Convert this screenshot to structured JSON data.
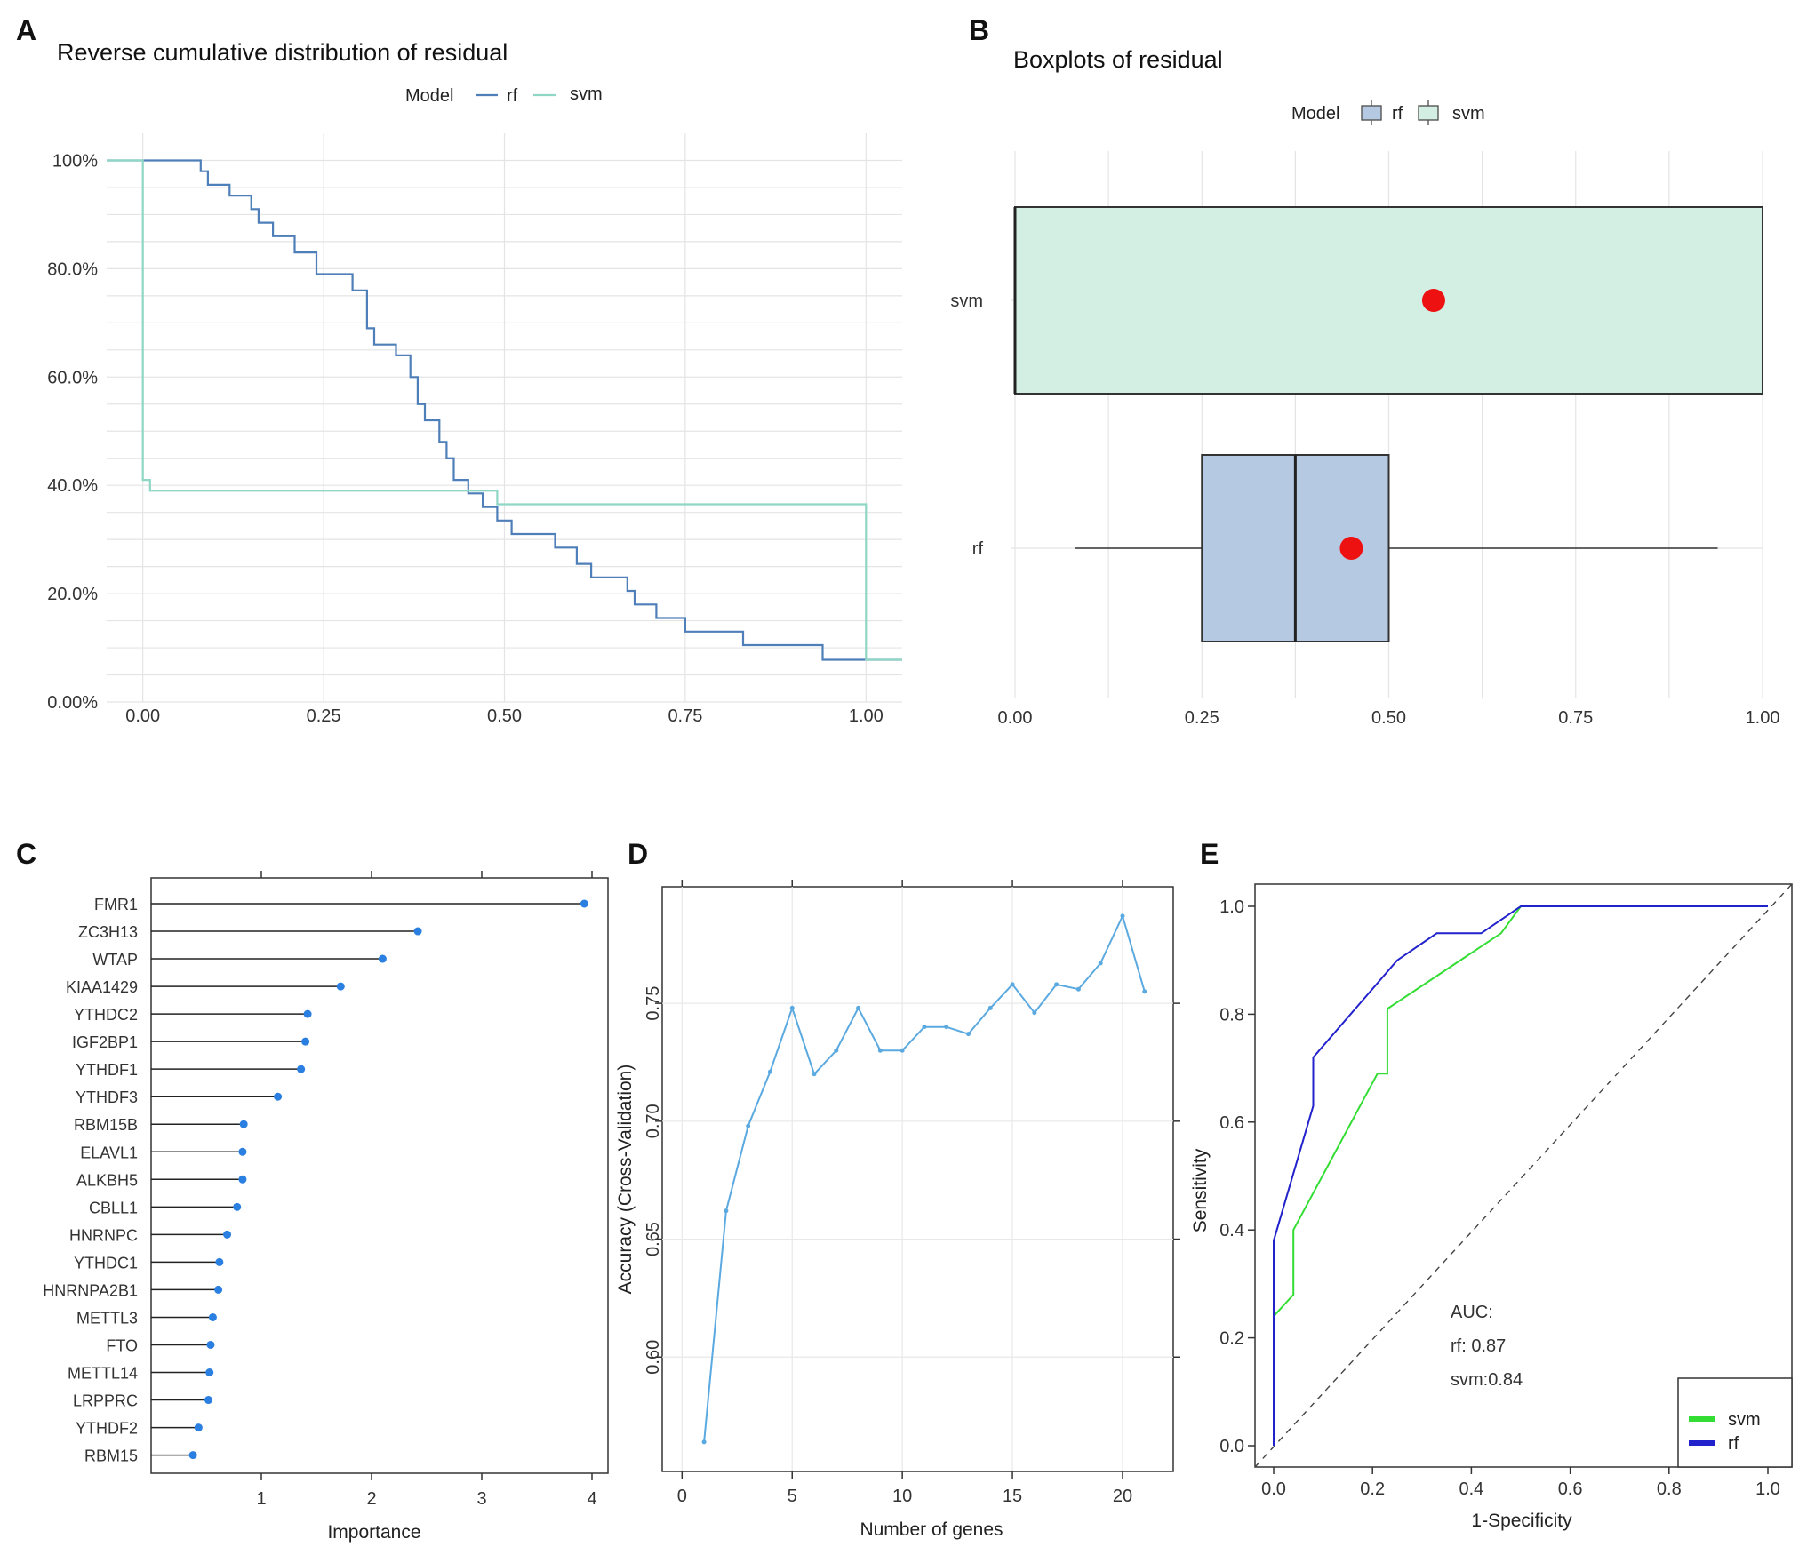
{
  "chart_data": [
    {
      "panel": "A",
      "type": "line",
      "title": "Reverse cumulative distribution of residual",
      "legend_title": "Model",
      "xlim": [
        -0.05,
        1.05
      ],
      "ylim": [
        0,
        1.05
      ],
      "x_ticks": [
        "0.00",
        "0.25",
        "0.50",
        "0.75",
        "1.00"
      ],
      "y_ticks": [
        "0.00%",
        "20.0%",
        "40.0%",
        "60.0%",
        "80.0%",
        "100%"
      ],
      "series": [
        {
          "name": "rf",
          "color": "#4f7fb8",
          "points": [
            [
              -0.05,
              1.0
            ],
            [
              0.08,
              1.0
            ],
            [
              0.08,
              0.98
            ],
            [
              0.09,
              0.98
            ],
            [
              0.09,
              0.955
            ],
            [
              0.12,
              0.955
            ],
            [
              0.12,
              0.935
            ],
            [
              0.15,
              0.935
            ],
            [
              0.15,
              0.91
            ],
            [
              0.16,
              0.91
            ],
            [
              0.16,
              0.885
            ],
            [
              0.18,
              0.885
            ],
            [
              0.18,
              0.86
            ],
            [
              0.21,
              0.86
            ],
            [
              0.21,
              0.83
            ],
            [
              0.24,
              0.83
            ],
            [
              0.24,
              0.79
            ],
            [
              0.29,
              0.79
            ],
            [
              0.29,
              0.76
            ],
            [
              0.31,
              0.76
            ],
            [
              0.31,
              0.69
            ],
            [
              0.32,
              0.69
            ],
            [
              0.32,
              0.66
            ],
            [
              0.35,
              0.66
            ],
            [
              0.35,
              0.64
            ],
            [
              0.37,
              0.64
            ],
            [
              0.37,
              0.6
            ],
            [
              0.38,
              0.6
            ],
            [
              0.38,
              0.55
            ],
            [
              0.39,
              0.55
            ],
            [
              0.39,
              0.52
            ],
            [
              0.41,
              0.52
            ],
            [
              0.41,
              0.48
            ],
            [
              0.42,
              0.48
            ],
            [
              0.42,
              0.45
            ],
            [
              0.43,
              0.45
            ],
            [
              0.43,
              0.41
            ],
            [
              0.45,
              0.41
            ],
            [
              0.45,
              0.385
            ],
            [
              0.47,
              0.385
            ],
            [
              0.47,
              0.36
            ],
            [
              0.49,
              0.36
            ],
            [
              0.49,
              0.335
            ],
            [
              0.51,
              0.335
            ],
            [
              0.51,
              0.31
            ],
            [
              0.57,
              0.31
            ],
            [
              0.57,
              0.285
            ],
            [
              0.6,
              0.285
            ],
            [
              0.6,
              0.255
            ],
            [
              0.62,
              0.255
            ],
            [
              0.62,
              0.23
            ],
            [
              0.67,
              0.23
            ],
            [
              0.67,
              0.205
            ],
            [
              0.68,
              0.205
            ],
            [
              0.68,
              0.18
            ],
            [
              0.71,
              0.18
            ],
            [
              0.71,
              0.155
            ],
            [
              0.75,
              0.155
            ],
            [
              0.75,
              0.13
            ],
            [
              0.83,
              0.13
            ],
            [
              0.83,
              0.105
            ],
            [
              0.94,
              0.105
            ],
            [
              0.94,
              0.078
            ],
            [
              1.05,
              0.078
            ]
          ]
        },
        {
          "name": "svm",
          "color": "#8fd6c4",
          "points": [
            [
              -0.05,
              1.0
            ],
            [
              0.0,
              1.0
            ],
            [
              0.0,
              0.41
            ],
            [
              0.01,
              0.41
            ],
            [
              0.01,
              0.39
            ],
            [
              0.49,
              0.39
            ],
            [
              0.49,
              0.365
            ],
            [
              1.0,
              0.365
            ],
            [
              1.0,
              0.078
            ],
            [
              1.05,
              0.078
            ]
          ]
        }
      ]
    },
    {
      "panel": "B",
      "type": "box",
      "title": "Boxplots of residual",
      "legend_title": "Model",
      "xlim": [
        0,
        1
      ],
      "x_ticks": [
        "0.00",
        "0.25",
        "0.50",
        "0.75",
        "1.00"
      ],
      "series": [
        {
          "name": "svm",
          "color": "#d3efe4",
          "whisker_low": 0.0,
          "q1": 0.0,
          "median": 0.0,
          "q3": 1.0,
          "whisker_high": 1.0,
          "mean": 0.56
        },
        {
          "name": "rf",
          "color": "#b5c9e3",
          "whisker_low": 0.08,
          "q1": 0.25,
          "median": 0.375,
          "q3": 0.5,
          "whisker_high": 0.94,
          "mean": 0.45
        }
      ]
    },
    {
      "panel": "C",
      "type": "bar",
      "xlabel": "Importance",
      "xlim": [
        0,
        4.2
      ],
      "x_ticks": [
        "1",
        "2",
        "3",
        "4"
      ],
      "categories": [
        "FMR1",
        "ZC3H13",
        "WTAP",
        "KIAA1429",
        "YTHDC2",
        "IGF2BP1",
        "YTHDF1",
        "YTHDF3",
        "RBM15B",
        "ELAVL1",
        "ALKBH5",
        "CBLL1",
        "HNRNPC",
        "YTHDC1",
        "HNRNPA2B1",
        "METTL3",
        "FTO",
        "METTL14",
        "LRPPRC",
        "YTHDF2",
        "RBM15"
      ],
      "values": [
        3.93,
        2.42,
        2.1,
        1.72,
        1.42,
        1.4,
        1.36,
        1.15,
        0.84,
        0.83,
        0.83,
        0.78,
        0.69,
        0.62,
        0.61,
        0.56,
        0.54,
        0.53,
        0.52,
        0.43,
        0.38
      ]
    },
    {
      "panel": "D",
      "type": "line",
      "xlabel": "Number of genes",
      "ylabel": "Accuracy (Cross-Validation)",
      "xlim": [
        -0.9,
        22.3
      ],
      "ylim": [
        0.5515,
        0.7994
      ],
      "x_ticks": [
        "0",
        "5",
        "10",
        "15",
        "20"
      ],
      "y_ticks": [
        "0.60",
        "0.65",
        "0.70",
        "0.75"
      ],
      "x": [
        1,
        2,
        3,
        4,
        5,
        6,
        7,
        8,
        9,
        10,
        11,
        12,
        13,
        14,
        15,
        16,
        17,
        18,
        19,
        20,
        21
      ],
      "values": [
        0.564,
        0.662,
        0.698,
        0.721,
        0.748,
        0.72,
        0.73,
        0.748,
        0.73,
        0.73,
        0.74,
        0.74,
        0.737,
        0.748,
        0.758,
        0.746,
        0.758,
        0.756,
        0.767,
        0.787,
        0.755
      ]
    },
    {
      "panel": "E",
      "type": "line",
      "xlabel": "1-Specificity",
      "ylabel": "Sensitivity",
      "xlim": [
        -0.04,
        1.04
      ],
      "ylim": [
        -0.04,
        1.04
      ],
      "x_ticks": [
        "0.0",
        "0.2",
        "0.4",
        "0.6",
        "0.8",
        "1.0"
      ],
      "y_ticks": [
        "0.0",
        "0.2",
        "0.4",
        "0.6",
        "0.8",
        "1.0"
      ],
      "annotation": [
        "AUC:",
        "rf: 0.87",
        "svm:0.84"
      ],
      "series": [
        {
          "name": "svm",
          "color": "#33dd33",
          "x": [
            0.0,
            0.0,
            0.04,
            0.04,
            0.21,
            0.23,
            0.23,
            0.46,
            0.5,
            1.0
          ],
          "y": [
            0.0,
            0.24,
            0.28,
            0.4,
            0.69,
            0.69,
            0.81,
            0.95,
            1.0,
            1.0
          ]
        },
        {
          "name": "rf",
          "color": "#2222cc",
          "x": [
            0.0,
            0.0,
            0.08,
            0.08,
            0.25,
            0.33,
            0.42,
            0.5,
            1.0
          ],
          "y": [
            0.0,
            0.38,
            0.63,
            0.72,
            0.9,
            0.95,
            0.95,
            1.0,
            1.0
          ]
        }
      ]
    }
  ]
}
